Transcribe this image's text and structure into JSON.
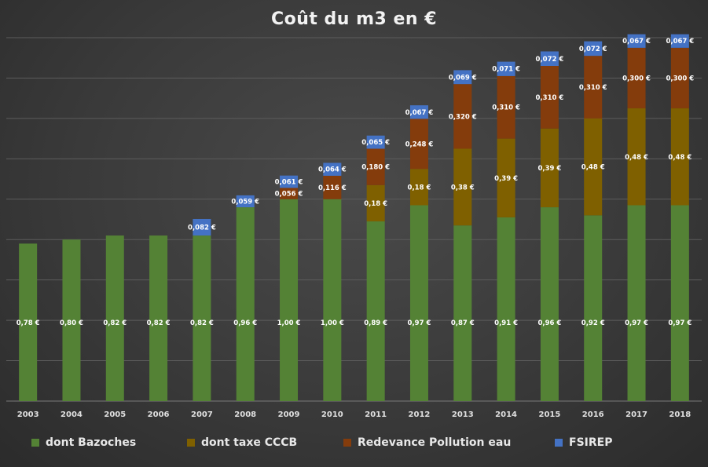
{
  "chart_data": {
    "type": "bar",
    "stacked": true,
    "title": "Coût du m3 en €",
    "xlabel": "",
    "ylabel": "",
    "ylim": [
      0,
      1.8
    ],
    "grid": true,
    "legend_position": "bottom",
    "categories": [
      "2003",
      "2004",
      "2005",
      "2006",
      "2007",
      "2008",
      "2009",
      "2010",
      "2011",
      "2012",
      "2013",
      "2014",
      "2015",
      "2016",
      "2017",
      "2018"
    ],
    "series": [
      {
        "name": "dont Bazoches",
        "color": "#548235",
        "values": [
          0.78,
          0.8,
          0.82,
          0.82,
          0.82,
          0.96,
          1.0,
          1.0,
          0.89,
          0.97,
          0.87,
          0.91,
          0.96,
          0.92,
          0.97,
          0.97
        ],
        "labels": [
          "0,78 €",
          "0,80 €",
          "0,82 €",
          "0,82 €",
          "0,82 €",
          "0,96 €",
          "1,00 €",
          "1,00 €",
          "0,89 €",
          "0,97 €",
          "0,87 €",
          "0,91 €",
          "0,96 €",
          "0,92 €",
          "0,97 €",
          "0,97 €"
        ]
      },
      {
        "name": "dont taxe CCCB",
        "color": "#7f6000",
        "values": [
          0,
          0,
          0,
          0,
          0,
          0,
          0,
          0,
          0.18,
          0.18,
          0.38,
          0.39,
          0.39,
          0.48,
          0.48,
          0.48
        ],
        "labels": [
          "",
          "",
          "",
          "",
          "",
          "",
          "",
          "",
          "0,18 €",
          "0,18 €",
          "0,38 €",
          "0,39 €",
          "0,39 €",
          "0,48 €",
          "0,48 €",
          "0,48 €"
        ]
      },
      {
        "name": "Redevance Pollution eau",
        "color": "#843c0c",
        "values": [
          0,
          0,
          0,
          0,
          0,
          0,
          0.056,
          0.116,
          0.18,
          0.248,
          0.32,
          0.31,
          0.31,
          0.31,
          0.3,
          0.3
        ],
        "labels": [
          "",
          "",
          "",
          "",
          "",
          "",
          "0,056 €",
          "0,116 €",
          "0,180 €",
          "0,248 €",
          "0,320 €",
          "0,310 €",
          "0,310 €",
          "0,310 €",
          "0,300 €",
          "0,300 €"
        ]
      },
      {
        "name": "FSIREP",
        "color": "#4472c4",
        "values": [
          0,
          0,
          0,
          0,
          0.082,
          0.059,
          0.061,
          0.064,
          0.065,
          0.067,
          0.069,
          0.071,
          0.072,
          0.072,
          0.067,
          0.067
        ],
        "labels": [
          "",
          "",
          "",
          "",
          "0,082 €",
          "0,059 €",
          "0,061 €",
          "0,064 €",
          "0,065 €",
          "0,067 €",
          "0,069 €",
          "0,071 €",
          "0,072 €",
          "0,072 €",
          "0,067 €",
          "0,067 €"
        ]
      }
    ]
  }
}
